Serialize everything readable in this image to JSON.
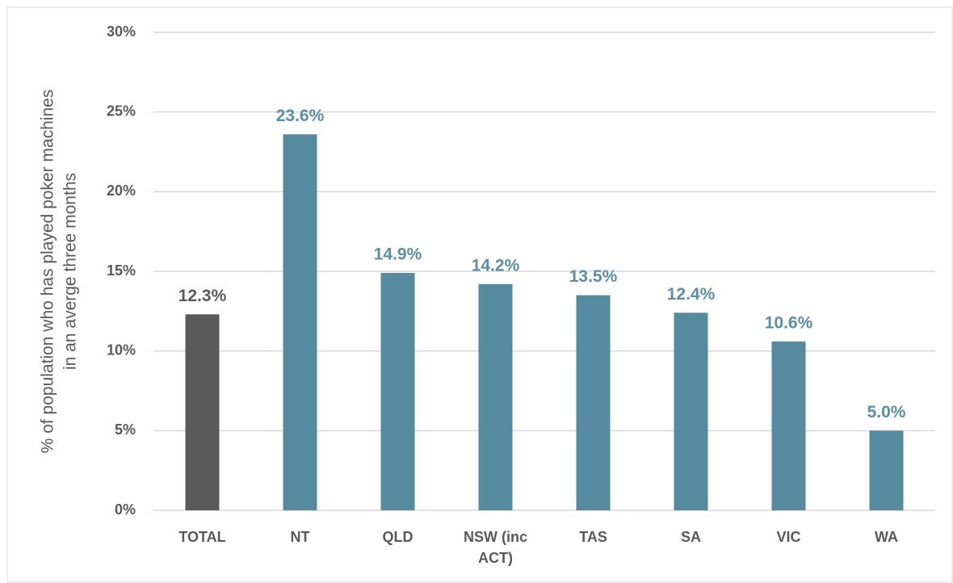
{
  "chart_data": {
    "type": "bar",
    "ylabel": [
      "% of population who has played poker machines",
      "in an averge three months"
    ],
    "categories": [
      "TOTAL",
      "NT",
      "QLD",
      "NSW (inc ACT)",
      "TAS",
      "SA",
      "VIC",
      "WA"
    ],
    "values": [
      12.3,
      23.6,
      14.9,
      14.2,
      13.5,
      12.4,
      10.6,
      5.0
    ],
    "value_labels": [
      "12.3%",
      "23.6%",
      "14.9%",
      "14.2%",
      "13.5%",
      "12.4%",
      "10.6%",
      "5.0%"
    ],
    "colors": [
      "#595959",
      "#568a9f",
      "#568a9f",
      "#568a9f",
      "#568a9f",
      "#568a9f",
      "#568a9f",
      "#568a9f"
    ],
    "label_colors": [
      "#595959",
      "#5b8fa3",
      "#5b8fa3",
      "#5b8fa3",
      "#5b8fa3",
      "#5b8fa3",
      "#5b8fa3",
      "#5b8fa3"
    ],
    "ylim": [
      0,
      30
    ],
    "yticks": [
      {
        "value": 0,
        "label": "0%"
      },
      {
        "value": 5,
        "label": "5%"
      },
      {
        "value": 10,
        "label": "10%"
      },
      {
        "value": 15,
        "label": "15%"
      },
      {
        "value": 20,
        "label": "20%"
      },
      {
        "value": 25,
        "label": "25%"
      },
      {
        "value": 30,
        "label": "30%"
      }
    ],
    "grid": true
  }
}
